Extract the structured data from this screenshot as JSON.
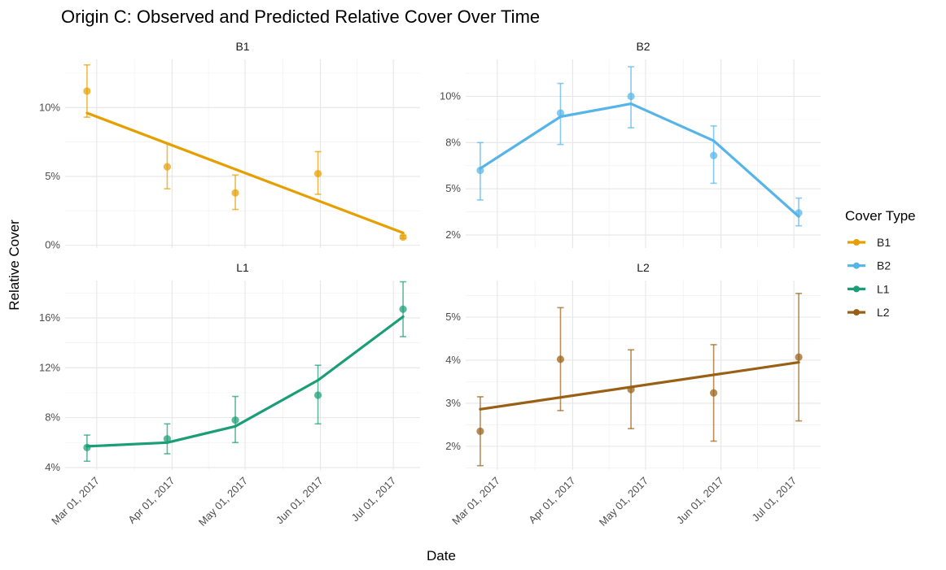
{
  "chart_data": {
    "type": "line",
    "title": "Origin C: Observed and Predicted Relative Cover Over Time",
    "xlabel": "Date",
    "ylabel": "Relative Cover",
    "legend": {
      "title": "Cover Type",
      "placement": "right",
      "entries": [
        "B1",
        "B2",
        "L1",
        "L2"
      ]
    },
    "x_ticks": [
      "2017-03-01",
      "2017-04-01",
      "2017-05-01",
      "2017-06-01",
      "2017-07-01"
    ],
    "x_tick_labels": [
      "Mar 01, 2017",
      "Apr 01, 2017",
      "May 01, 2017",
      "Jun 01, 2017",
      "Jul 01, 2017"
    ],
    "x_range": [
      "2017-02-16",
      "2017-07-12"
    ],
    "grid": true,
    "colors": {
      "B1": "#E69F00",
      "B2": "#56B4E9",
      "L1": "#1B9E77",
      "L2": "#996015"
    },
    "panels": [
      {
        "name": "B1",
        "ylim": [
          -0.002,
          0.135
        ],
        "y_ticks": [
          0,
          0.05,
          0.1
        ],
        "y_tick_labels": [
          "0%",
          "5%",
          "10%"
        ],
        "observed": [
          {
            "date": "2017-02-25",
            "value": 0.112,
            "low": 0.093,
            "high": 0.131
          },
          {
            "date": "2017-03-30",
            "value": 0.057,
            "low": 0.041,
            "high": 0.074
          },
          {
            "date": "2017-04-27",
            "value": 0.038,
            "low": 0.026,
            "high": 0.051
          },
          {
            "date": "2017-05-31",
            "value": 0.052,
            "low": 0.037,
            "high": 0.068
          },
          {
            "date": "2017-07-05",
            "value": 0.006,
            "low": 0.005,
            "high": 0.007
          }
        ],
        "predicted": [
          {
            "date": "2017-02-25",
            "value": 0.096
          },
          {
            "date": "2017-07-05",
            "value": 0.009
          }
        ]
      },
      {
        "name": "B2",
        "ylim": [
          0.018,
          0.12
        ],
        "y_ticks": [
          0.025,
          0.05,
          0.075,
          0.1
        ],
        "y_tick_labels": [
          "2%",
          "5%",
          "8%",
          "10%"
        ],
        "observed": [
          {
            "date": "2017-02-22",
            "value": 0.06,
            "low": 0.044,
            "high": 0.075
          },
          {
            "date": "2017-03-27",
            "value": 0.091,
            "low": 0.074,
            "high": 0.107
          },
          {
            "date": "2017-04-25",
            "value": 0.1,
            "low": 0.083,
            "high": 0.116
          },
          {
            "date": "2017-05-29",
            "value": 0.068,
            "low": 0.053,
            "high": 0.084
          },
          {
            "date": "2017-07-03",
            "value": 0.037,
            "low": 0.03,
            "high": 0.045
          }
        ],
        "predicted": [
          {
            "date": "2017-02-22",
            "value": 0.061
          },
          {
            "date": "2017-03-27",
            "value": 0.089
          },
          {
            "date": "2017-04-25",
            "value": 0.096
          },
          {
            "date": "2017-05-29",
            "value": 0.076
          },
          {
            "date": "2017-07-03",
            "value": 0.035
          }
        ]
      },
      {
        "name": "L1",
        "ylim": [
          0.038,
          0.19
        ],
        "y_ticks": [
          0.04,
          0.08,
          0.12,
          0.16
        ],
        "y_tick_labels": [
          "4%",
          "8%",
          "12%",
          "16%"
        ],
        "observed": [
          {
            "date": "2017-02-25",
            "value": 0.056,
            "low": 0.045,
            "high": 0.066
          },
          {
            "date": "2017-03-30",
            "value": 0.063,
            "low": 0.051,
            "high": 0.075
          },
          {
            "date": "2017-04-27",
            "value": 0.078,
            "low": 0.06,
            "high": 0.097
          },
          {
            "date": "2017-05-31",
            "value": 0.098,
            "low": 0.075,
            "high": 0.122
          },
          {
            "date": "2017-07-05",
            "value": 0.167,
            "low": 0.145,
            "high": 0.189
          }
        ],
        "predicted": [
          {
            "date": "2017-02-25",
            "value": 0.057
          },
          {
            "date": "2017-03-30",
            "value": 0.06
          },
          {
            "date": "2017-04-27",
            "value": 0.073
          },
          {
            "date": "2017-05-31",
            "value": 0.11
          },
          {
            "date": "2017-07-05",
            "value": 0.161
          }
        ]
      },
      {
        "name": "L2",
        "ylim": [
          0.0145,
          0.0585
        ],
        "y_ticks": [
          0.02,
          0.03,
          0.04,
          0.05
        ],
        "y_tick_labels": [
          "2%",
          "3%",
          "4%",
          "5%"
        ],
        "observed": [
          {
            "date": "2017-02-22",
            "value": 0.0235,
            "low": 0.0155,
            "high": 0.0315
          },
          {
            "date": "2017-03-27",
            "value": 0.0402,
            "low": 0.0283,
            "high": 0.0522
          },
          {
            "date": "2017-04-25",
            "value": 0.0332,
            "low": 0.0241,
            "high": 0.0424
          },
          {
            "date": "2017-05-29",
            "value": 0.0324,
            "low": 0.0212,
            "high": 0.0436
          },
          {
            "date": "2017-07-03",
            "value": 0.0407,
            "low": 0.0259,
            "high": 0.0555
          }
        ],
        "predicted": [
          {
            "date": "2017-02-22",
            "value": 0.0286
          },
          {
            "date": "2017-07-03",
            "value": 0.0395
          }
        ]
      }
    ]
  }
}
